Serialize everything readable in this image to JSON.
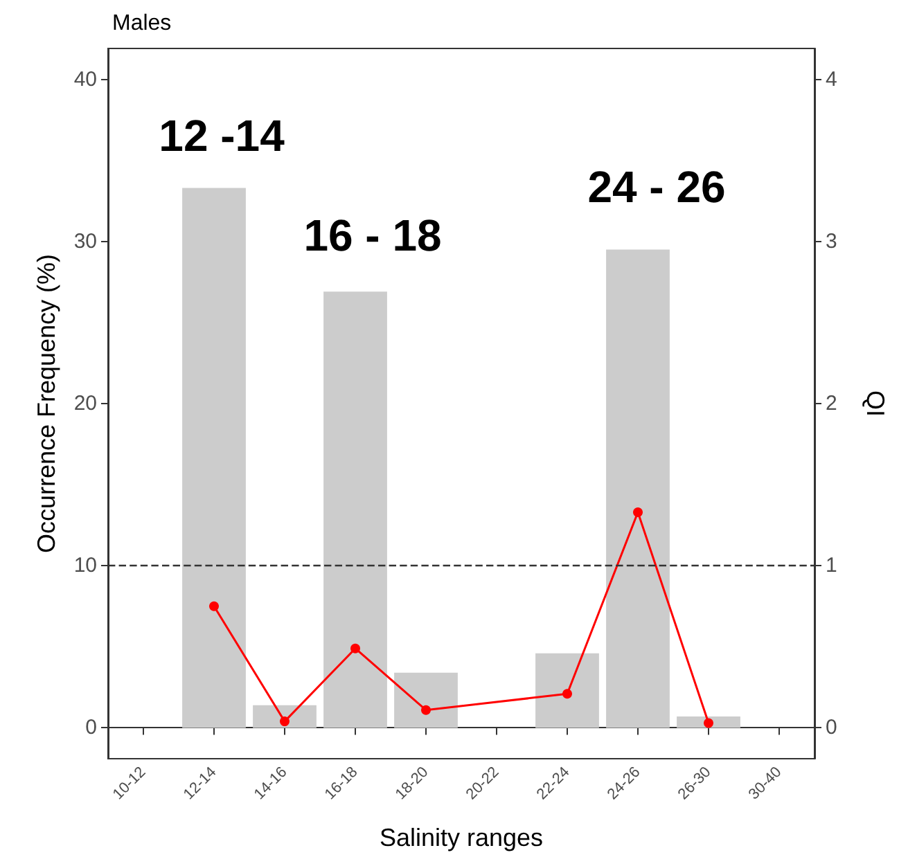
{
  "chart_data": {
    "type": "bar",
    "title": "Males",
    "xlabel": "Salinity ranges",
    "ylabel": "Occurrence Frequency (%)",
    "y2label": "QI",
    "categories": [
      "10-12",
      "12-14",
      "14-16",
      "16-18",
      "18-20",
      "20-22",
      "22-24",
      "24-26",
      "26-30",
      "30-40"
    ],
    "series": [
      {
        "color": "#cccccc",
        "values": [
          0,
          33.3,
          1.4,
          26.9,
          3.4,
          0,
          4.6,
          29.5,
          0.7,
          0
        ]
      },
      {
        "type": "line",
        "axis": "y2",
        "color": "#ff0000",
        "marker": "circle",
        "line_style": "solid",
        "values": [
          null,
          0.75,
          0.04,
          0.49,
          0.11,
          null,
          0.21,
          1.33,
          0.03,
          null
        ]
      }
    ],
    "ylim": [
      -1.9,
      41.9
    ],
    "yticks": [
      0,
      10,
      20,
      30,
      40
    ],
    "y2lim": [
      -0.19,
      4.19
    ],
    "y2ticks": [
      0,
      1,
      2,
      3,
      4
    ],
    "ref_lines": [
      {
        "axis": "y",
        "value": 10,
        "color": "#333333",
        "line_style": "dashed"
      }
    ],
    "annotations": [
      "12 -14",
      "16 - 18",
      "24 - 26"
    ],
    "grid": false
  }
}
